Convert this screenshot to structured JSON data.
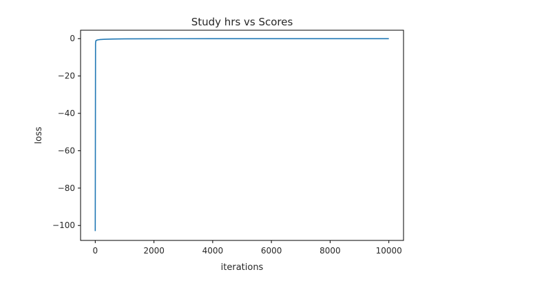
{
  "chart_data": {
    "type": "line",
    "title": "Study hrs vs Scores",
    "xlabel": "iterations",
    "ylabel": "loss",
    "xlim": [
      -500,
      10500
    ],
    "ylim": [
      -108,
      4.5
    ],
    "xticks": [
      0,
      2000,
      4000,
      6000,
      8000,
      10000
    ],
    "xtick_labels": [
      "0",
      "2000",
      "4000",
      "6000",
      "8000",
      "10000"
    ],
    "yticks": [
      0,
      -20,
      -40,
      -60,
      -80,
      -100
    ],
    "ytick_labels": [
      "0",
      "−20",
      "−40",
      "−60",
      "−80",
      "−100"
    ],
    "grid": false,
    "legend": false,
    "series": [
      {
        "color": "#1f77b4",
        "x": [
          0,
          10,
          20,
          40,
          80,
          150,
          300,
          600,
          1000,
          2000,
          4000,
          6000,
          8000,
          10000
        ],
        "y": [
          -103,
          -2.5,
          -1.2,
          -0.9,
          -0.7,
          -0.5,
          -0.35,
          -0.2,
          -0.12,
          -0.06,
          -0.03,
          -0.02,
          -0.015,
          -0.01
        ]
      }
    ]
  }
}
